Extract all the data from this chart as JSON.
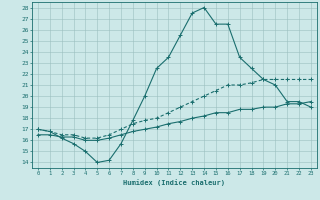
{
  "xlabel": "Humidex (Indice chaleur)",
  "ylabel": "",
  "xlim": [
    -0.5,
    23.5
  ],
  "ylim": [
    13.5,
    28.5
  ],
  "xticks": [
    0,
    1,
    2,
    3,
    4,
    5,
    6,
    7,
    8,
    9,
    10,
    11,
    12,
    13,
    14,
    15,
    16,
    17,
    18,
    19,
    20,
    21,
    22,
    23
  ],
  "yticks": [
    14,
    15,
    16,
    17,
    18,
    19,
    20,
    21,
    22,
    23,
    24,
    25,
    26,
    27,
    28
  ],
  "bg_color": "#cce8e8",
  "grid_color": "#9bbfbf",
  "line_color": "#1a6e6e",
  "line1_x": [
    0,
    1,
    2,
    3,
    4,
    5,
    6,
    7,
    8,
    9,
    10,
    11,
    12,
    13,
    14,
    15,
    16,
    17,
    18,
    19,
    20,
    21,
    22,
    23
  ],
  "line1_y": [
    17.0,
    16.8,
    16.2,
    15.7,
    15.0,
    14.0,
    14.2,
    15.7,
    17.8,
    20.0,
    22.5,
    23.5,
    25.5,
    27.5,
    28.0,
    26.5,
    26.5,
    23.5,
    22.5,
    21.5,
    21.0,
    19.5,
    19.5,
    19.0
  ],
  "line2_x": [
    0,
    1,
    2,
    3,
    4,
    5,
    6,
    7,
    8,
    9,
    10,
    11,
    12,
    13,
    14,
    15,
    16,
    17,
    18,
    19,
    20,
    21,
    22,
    23
  ],
  "line2_y": [
    17.0,
    16.8,
    16.5,
    16.5,
    16.2,
    16.2,
    16.5,
    17.0,
    17.5,
    17.8,
    18.0,
    18.5,
    19.0,
    19.5,
    20.0,
    20.5,
    21.0,
    21.0,
    21.2,
    21.5,
    21.5,
    21.5,
    21.5,
    21.5
  ],
  "line3_x": [
    0,
    1,
    2,
    3,
    4,
    5,
    6,
    7,
    8,
    9,
    10,
    11,
    12,
    13,
    14,
    15,
    16,
    17,
    18,
    19,
    20,
    21,
    22,
    23
  ],
  "line3_y": [
    16.5,
    16.5,
    16.3,
    16.3,
    16.0,
    16.0,
    16.2,
    16.5,
    16.8,
    17.0,
    17.2,
    17.5,
    17.7,
    18.0,
    18.2,
    18.5,
    18.5,
    18.8,
    18.8,
    19.0,
    19.0,
    19.3,
    19.3,
    19.5
  ]
}
